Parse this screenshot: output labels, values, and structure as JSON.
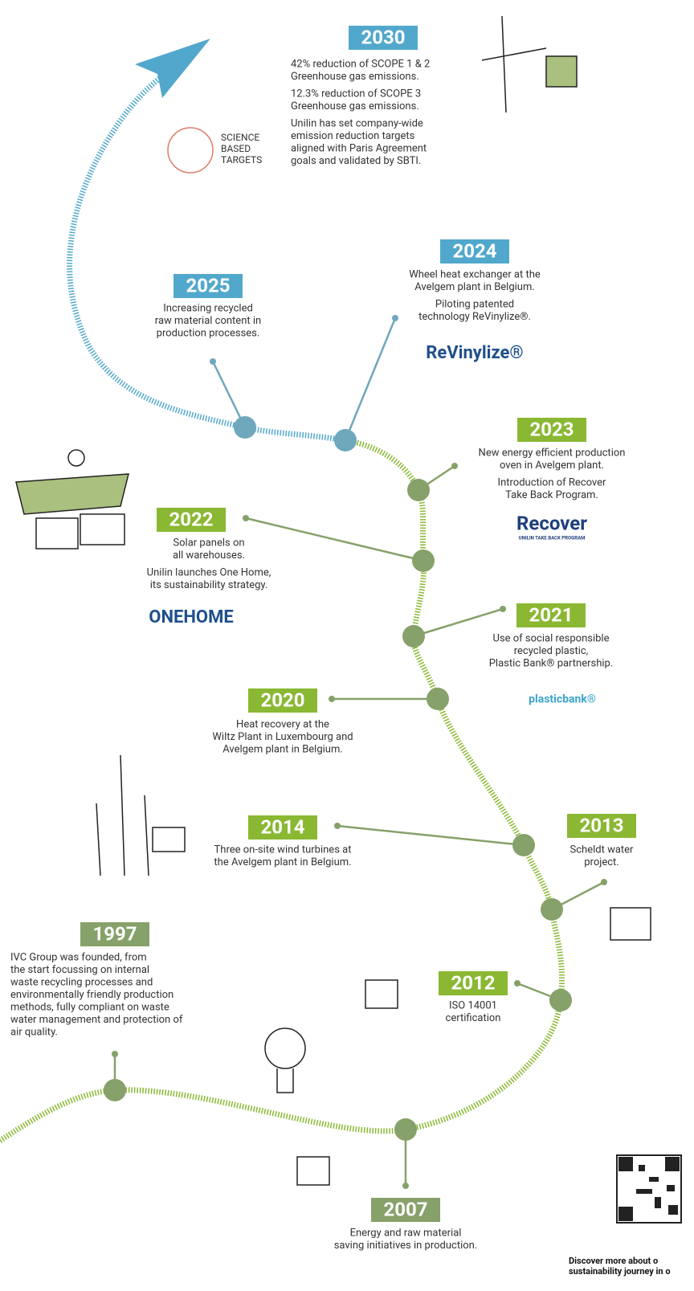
{
  "milestones": [
    {
      "year": "2030",
      "color": "#52a8cc",
      "paragraphs": [
        [
          "42% reduction of SCOPE 1 & 2",
          "Greenhouse gas emissions."
        ],
        [
          "12.3% reduction of SCOPE 3",
          "Greenhouse gas emissions."
        ],
        [
          "Unilin has set company-wide",
          "emission reduction targets",
          "aligned with Paris Agreement",
          "goals and validated by SBTI."
        ]
      ],
      "logo": [
        "SCIENCE",
        "BASED",
        "TARGETS"
      ]
    },
    {
      "year": "2024",
      "color": "#52a8cc",
      "paragraphs": [
        [
          "Wheel heat exchanger at the",
          "Avelgem plant in Belgium."
        ],
        [
          "Piloting patented",
          "technology ReVinylize®."
        ]
      ],
      "logo": [
        "ReVinylize®"
      ]
    },
    {
      "year": "2025",
      "color": "#52a8cc",
      "paragraphs": [
        [
          "Increasing recycled",
          "raw material content in",
          "production processes."
        ]
      ]
    },
    {
      "year": "2023",
      "color": "#8ab833",
      "paragraphs": [
        [
          "New energy efficient production",
          "oven in Avelgem plant."
        ],
        [
          "Introduction of Recover",
          "Take Back Program."
        ]
      ],
      "logo": [
        "Recover",
        "UNILIN TAKE BACK PROGRAM"
      ]
    },
    {
      "year": "2022",
      "color": "#8ab833",
      "paragraphs": [
        [
          "Solar panels on",
          "all warehouses."
        ],
        [
          "Unilin launches One Home,",
          "its sustainability strategy."
        ]
      ],
      "logo": [
        "ONEHOME"
      ]
    },
    {
      "year": "2021",
      "color": "#8ab833",
      "paragraphs": [
        [
          "Use of social responsible",
          "recycled plastic,",
          "Plastic Bank® partnership."
        ]
      ],
      "logo": [
        "plasticbank®"
      ]
    },
    {
      "year": "2020",
      "color": "#8ab833",
      "paragraphs": [
        [
          "Heat recovery at the",
          "Wiltz Plant in Luxembourg and",
          "Avelgem plant in Belgium."
        ]
      ]
    },
    {
      "year": "2014",
      "color": "#8ab833",
      "paragraphs": [
        [
          "Three on-site wind turbines at",
          "the Avelgem plant in Belgium."
        ]
      ]
    },
    {
      "year": "2013",
      "color": "#8ab833",
      "paragraphs": [
        [
          "Scheldt water",
          "project."
        ]
      ]
    },
    {
      "year": "1997",
      "color": "#86a169",
      "paragraphs": [
        [
          "IVC Group was founded, from",
          "the start focussing on internal",
          "waste recycling processes and",
          "environmentally friendly production",
          "methods, fully compliant on waste",
          "water management and protection of",
          "air quality."
        ]
      ]
    },
    {
      "year": "2012",
      "color": "#8ab833",
      "paragraphs": [
        [
          "ISO 14001",
          "certification"
        ]
      ]
    },
    {
      "year": "2007",
      "color": "#86a169",
      "paragraphs": [
        [
          "Energy and raw material",
          "saving initiatives in production."
        ]
      ]
    }
  ],
  "qr_caption": [
    "Discover more about o",
    "sustainability journey in o"
  ]
}
